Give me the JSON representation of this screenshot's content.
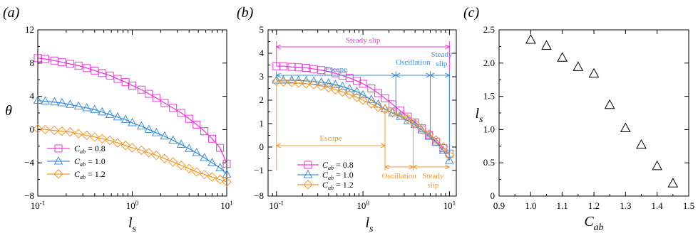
{
  "panels": {
    "a": "(a)",
    "b": "(b)",
    "c": "(c)"
  },
  "colors": {
    "c08": "#ee3ad8",
    "c10": "#3c8fe0",
    "c12": "#f39a2f",
    "axis": "#000000"
  },
  "chart_data": [
    {
      "id": "a",
      "type": "line",
      "xlabel": "l_s",
      "ylabel": "θ",
      "xscale": "log",
      "xlim": [
        0.1,
        10
      ],
      "ylim": [
        -8,
        12
      ],
      "xticks": [
        "10^-1",
        "10^0",
        "10^1"
      ],
      "yticks": [
        -8,
        -4,
        0,
        4,
        8,
        12
      ],
      "legend_position": "bottom-left",
      "series": [
        {
          "name": "C_ab = 0.8",
          "marker": "square",
          "color": "#ee3ad8",
          "x": [
            0.1,
            0.12,
            0.15,
            0.18,
            0.22,
            0.27,
            0.33,
            0.4,
            0.48,
            0.58,
            0.7,
            0.85,
            1.0,
            1.25,
            1.5,
            1.8,
            2.2,
            2.7,
            3.3,
            4.0,
            4.8,
            5.8,
            7.0,
            8.5,
            10
          ],
          "y": [
            8.6,
            8.5,
            8.3,
            8.1,
            7.9,
            7.7,
            7.4,
            7.1,
            6.8,
            6.5,
            6.1,
            5.7,
            5.3,
            4.8,
            4.3,
            3.8,
            3.2,
            2.6,
            2.0,
            1.3,
            0.6,
            -0.2,
            -1.1,
            -2.2,
            -4.1
          ]
        },
        {
          "name": "C_ab = 1.0",
          "marker": "triangle",
          "color": "#3c8fe0",
          "x": [
            0.1,
            0.12,
            0.15,
            0.18,
            0.22,
            0.27,
            0.33,
            0.4,
            0.48,
            0.58,
            0.7,
            0.85,
            1.0,
            1.25,
            1.5,
            1.8,
            2.2,
            2.7,
            3.3,
            4.0,
            4.8,
            5.8,
            7.0,
            8.5,
            10
          ],
          "y": [
            3.5,
            3.4,
            3.3,
            3.2,
            3.0,
            2.8,
            2.6,
            2.4,
            2.1,
            1.8,
            1.5,
            1.2,
            0.8,
            0.4,
            0.0,
            -0.4,
            -0.8,
            -1.3,
            -1.8,
            -2.3,
            -2.8,
            -3.4,
            -4.0,
            -4.6,
            -5.4
          ]
        },
        {
          "name": "C_ab = 1.2",
          "marker": "diamond",
          "color": "#f39a2f",
          "x": [
            0.1,
            0.12,
            0.15,
            0.18,
            0.22,
            0.27,
            0.33,
            0.4,
            0.48,
            0.58,
            0.7,
            0.85,
            1.0,
            1.25,
            1.5,
            1.8,
            2.2,
            2.7,
            3.3,
            4.0,
            4.8,
            5.8,
            7.0,
            8.5,
            10
          ],
          "y": [
            0.1,
            0.0,
            -0.1,
            -0.2,
            -0.3,
            -0.5,
            -0.7,
            -0.9,
            -1.1,
            -1.3,
            -1.6,
            -1.9,
            -2.2,
            -2.5,
            -2.8,
            -3.1,
            -3.5,
            -3.9,
            -4.3,
            -4.7,
            -5.1,
            -5.4,
            -5.7,
            -6.0,
            -6.3
          ]
        }
      ]
    },
    {
      "id": "b",
      "type": "line",
      "xlabel": "l_s",
      "ylabel": "",
      "xscale": "log",
      "xlim": [
        0.08,
        12
      ],
      "ylim": [
        -8,
        5
      ],
      "xticks": [
        "10^-1",
        "10^0",
        "10^1"
      ],
      "yticks": [
        -8,
        -1,
        0,
        1,
        2,
        3,
        4,
        5
      ],
      "legend_position": "bottom-center",
      "annotations": {
        "steady_slip_top": "Steady slip",
        "escape_blue": "Escape",
        "oscillation_blue": "Oscillation",
        "steady_blue_1": "Steady",
        "steady_blue_2": "slip",
        "escape_orange": "Escape",
        "oscillation_orange": "Oscillation",
        "steady_orange_1": "Steady",
        "steady_orange_2": "slip"
      },
      "series": [
        {
          "name": "C_ab = 0.8",
          "marker": "square",
          "color": "#ee3ad8",
          "x": [
            0.1,
            0.12,
            0.15,
            0.18,
            0.22,
            0.27,
            0.33,
            0.4,
            0.48,
            0.58,
            0.7,
            0.85,
            1.0,
            1.25,
            1.5,
            1.8,
            2.2,
            2.7,
            3.3,
            4.0,
            4.8,
            5.8,
            7.0,
            8.5,
            10
          ],
          "y": [
            3.45,
            3.45,
            3.42,
            3.4,
            3.38,
            3.33,
            3.28,
            3.22,
            3.15,
            3.05,
            2.95,
            2.82,
            2.7,
            2.5,
            2.3,
            2.08,
            1.82,
            1.55,
            1.3,
            1.05,
            0.8,
            0.52,
            0.22,
            -0.05,
            -0.28
          ]
        },
        {
          "name": "C_ab = 1.0",
          "marker": "triangle",
          "color": "#3c8fe0",
          "x": [
            0.1,
            0.12,
            0.15,
            0.18,
            0.22,
            0.27,
            0.33,
            0.4,
            0.48,
            0.58,
            0.7,
            0.85,
            1.0,
            1.25,
            1.5,
            1.8,
            2.2,
            2.7,
            3.3,
            4.0,
            4.8,
            5.8,
            7.0,
            8.5,
            10
          ],
          "y": [
            2.85,
            2.85,
            2.85,
            2.84,
            2.82,
            2.8,
            2.76,
            2.72,
            2.66,
            2.58,
            2.48,
            2.36,
            2.22,
            2.02,
            1.82,
            1.62,
            1.45,
            1.3,
            1.12,
            0.95,
            0.72,
            0.45,
            0.2,
            -0.15,
            -0.58
          ]
        },
        {
          "name": "C_ab = 1.2",
          "marker": "diamond",
          "color": "#f39a2f",
          "x": [
            0.1,
            0.12,
            0.15,
            0.18,
            0.22,
            0.27,
            0.33,
            0.4,
            0.48,
            0.58,
            0.7,
            0.85,
            1.0,
            1.25,
            1.5,
            1.8,
            2.2,
            2.7,
            3.3,
            4.0,
            4.8,
            5.8,
            7.0,
            8.5,
            10
          ],
          "y": [
            2.8,
            2.78,
            2.76,
            2.73,
            2.7,
            2.66,
            2.6,
            2.53,
            2.45,
            2.35,
            2.24,
            2.12,
            2.0,
            1.84,
            1.7,
            1.6,
            1.48,
            1.35,
            1.2,
            1.0,
            0.8,
            0.55,
            0.3,
            0.0,
            -0.35
          ]
        }
      ]
    },
    {
      "id": "c",
      "type": "scatter",
      "xlabel": "C_ab",
      "ylabel": "l_s",
      "xlim": [
        0.9,
        1.5
      ],
      "ylim": [
        0,
        2.5
      ],
      "xticks": [
        "0.9",
        "1.0",
        "1.1",
        "1.2",
        "1.3",
        "1.4",
        "1.5"
      ],
      "yticks": [
        "0",
        "0.5",
        "1.0",
        "1.5",
        "2.0",
        "2.5"
      ],
      "marker": "triangle",
      "x": [
        1.0,
        1.05,
        1.1,
        1.15,
        1.2,
        1.25,
        1.3,
        1.35,
        1.4,
        1.45
      ],
      "y": [
        2.35,
        2.26,
        2.08,
        1.94,
        1.84,
        1.37,
        1.02,
        0.77,
        0.45,
        0.19
      ]
    }
  ]
}
